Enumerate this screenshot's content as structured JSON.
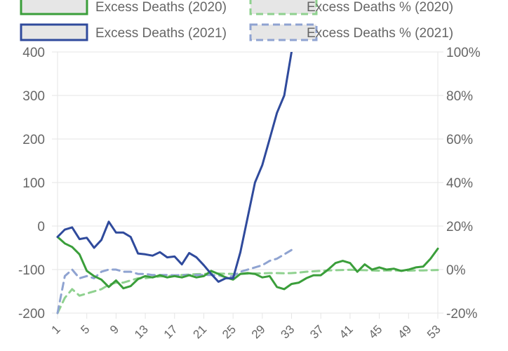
{
  "chart_data": {
    "type": "line",
    "legend": {
      "placement": "top",
      "entries": [
        {
          "label": "Excess Deaths (2020)",
          "style": "solid",
          "color": "#3a9e3a"
        },
        {
          "label": "Excess Deaths % (2020)",
          "style": "dashed",
          "color": "#8fd18f"
        },
        {
          "label": "Excess Deaths (2021)",
          "style": "solid",
          "color": "#2f4a9c"
        },
        {
          "label": "Excess Deaths % (2021)",
          "style": "dashed",
          "color": "#8fa3d1"
        }
      ]
    },
    "x_axis": {
      "min": 1,
      "max": 53,
      "tick_labels": [
        "1",
        "5",
        "9",
        "13",
        "17",
        "21",
        "25",
        "29",
        "33",
        "37",
        "41",
        "45",
        "49",
        "53"
      ],
      "tick_values": [
        1,
        5,
        9,
        13,
        17,
        21,
        25,
        29,
        33,
        37,
        41,
        45,
        49,
        53
      ]
    },
    "y_left": {
      "min": -200,
      "max": 400,
      "tick_labels": [
        "-200",
        "-100",
        "0",
        "100",
        "200",
        "300",
        "400"
      ],
      "tick_values": [
        -200,
        -100,
        0,
        100,
        200,
        300,
        400
      ]
    },
    "y_right": {
      "min": -20,
      "max": 100,
      "tick_labels": [
        "-20%",
        "0%",
        "20%",
        "40%",
        "60%",
        "80%",
        "100%"
      ],
      "tick_values": [
        -20,
        0,
        20,
        40,
        60,
        80,
        100
      ]
    },
    "grid": "horizontal",
    "series": [
      {
        "key": "deaths2020",
        "axis": "left",
        "color": "#3a9e3a",
        "dashed": false,
        "x": [
          1,
          2,
          3,
          4,
          5,
          6,
          7,
          8,
          9,
          10,
          11,
          12,
          13,
          14,
          15,
          16,
          17,
          18,
          19,
          20,
          21,
          22,
          23,
          24,
          25,
          26,
          27,
          28,
          29,
          30,
          31,
          32,
          33,
          34,
          35,
          36,
          37,
          38,
          39,
          40,
          41,
          42,
          43,
          44,
          45,
          46,
          47,
          48,
          49,
          50,
          51,
          52,
          53
        ],
        "y": [
          -25,
          -40,
          -48,
          -65,
          -103,
          -115,
          -123,
          -140,
          -125,
          -143,
          -138,
          -122,
          -115,
          -118,
          -113,
          -118,
          -115,
          -118,
          -113,
          -118,
          -115,
          -103,
          -110,
          -118,
          -123,
          -110,
          -108,
          -110,
          -118,
          -115,
          -140,
          -145,
          -133,
          -130,
          -120,
          -113,
          -113,
          -100,
          -85,
          -80,
          -85,
          -105,
          -88,
          -100,
          -95,
          -100,
          -98,
          -103,
          -100,
          -95,
          -93,
          -75,
          -52
        ]
      },
      {
        "key": "pct2020",
        "axis": "right",
        "color": "#8fd18f",
        "dashed": true,
        "x": [
          1,
          2,
          3,
          4,
          5,
          6,
          7,
          8,
          9,
          10,
          11,
          12,
          13,
          14,
          15,
          16,
          17,
          18,
          19,
          20,
          21,
          22,
          23,
          24,
          25,
          26,
          27,
          28,
          29,
          30,
          31,
          32,
          33,
          34,
          35,
          36,
          37,
          38,
          39,
          40,
          41,
          42,
          43,
          44,
          45,
          46,
          47,
          48,
          49,
          50,
          51,
          52,
          53
        ],
        "y": [
          -20,
          -13,
          -9,
          -12,
          -11,
          -10,
          -9,
          -7,
          -6,
          -6,
          -5,
          -4,
          -4,
          -3.5,
          -3.2,
          -3,
          -2.8,
          -2.5,
          -2.3,
          -2.1,
          -2,
          -1.9,
          -1.8,
          -1.9,
          -2,
          -2,
          -1.9,
          -1.8,
          -1.7,
          -1.6,
          -1.6,
          -1.7,
          -1.6,
          -1.4,
          -1,
          -0.8,
          -0.6,
          -0.4,
          -0.3,
          -0.2,
          -0.1,
          -0.2,
          -0.3,
          -0.4,
          -0.5,
          -0.4,
          -0.4,
          -0.5,
          -0.5,
          -0.4,
          -0.4,
          -0.3,
          -0.2
        ]
      },
      {
        "key": "deaths2021",
        "axis": "left",
        "color": "#2f4a9c",
        "dashed": false,
        "x": [
          1,
          2,
          3,
          4,
          5,
          6,
          7,
          8,
          9,
          10,
          11,
          12,
          13,
          14,
          15,
          16,
          17,
          18,
          19,
          20,
          21,
          22,
          23,
          24,
          25,
          26,
          27,
          28,
          29,
          30,
          31,
          32,
          33
        ],
        "y": [
          -25,
          -8,
          -3,
          -30,
          -27,
          -50,
          -32,
          10,
          -15,
          -15,
          -25,
          -63,
          -65,
          -68,
          -60,
          -72,
          -70,
          -88,
          -62,
          -72,
          -90,
          -110,
          -128,
          -120,
          -120,
          -60,
          20,
          100,
          140,
          200,
          260,
          300,
          400
        ]
      },
      {
        "key": "pct2021",
        "axis": "right",
        "color": "#8fa3d1",
        "dashed": true,
        "x": [
          1,
          2,
          3,
          4,
          5,
          6,
          7,
          8,
          9,
          10,
          11,
          12,
          13,
          14,
          15,
          16,
          17,
          18,
          19,
          20,
          21,
          22,
          23,
          24,
          25,
          26,
          27,
          28,
          29,
          30,
          31,
          32,
          33
        ],
        "y": [
          -20,
          -3,
          0,
          -4,
          -3,
          -4,
          -1,
          0,
          0,
          -1,
          -1,
          -2,
          -2,
          -2.5,
          -2.5,
          -2.5,
          -2.6,
          -2.5,
          -2.5,
          -2.5,
          -2.5,
          -2.5,
          -2.6,
          -3.5,
          -3,
          -1,
          0,
          1,
          2,
          4,
          5,
          7,
          9
        ]
      }
    ]
  }
}
